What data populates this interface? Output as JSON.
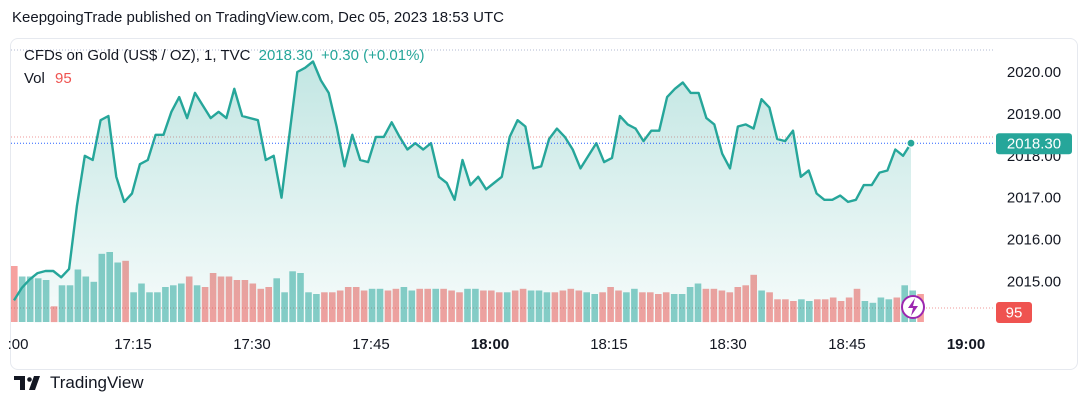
{
  "header": {
    "published": "KeepgoingTrade published on TradingView.com, Dec 05, 2023 18:53 UTC"
  },
  "legend": {
    "symbol": "CFDs on Gold (US$ / OZ), 1, TVC",
    "price": "2018.30",
    "change": "+0.30 (+0.01%)",
    "vol_label": "Vol",
    "vol_value": "95"
  },
  "footer": {
    "brand": "TradingView"
  },
  "colors": {
    "up": "#26a69a",
    "down": "#ef5350",
    "line": "#26a69a",
    "text": "#131722"
  },
  "chart_data": {
    "type": "area",
    "y_ticks": [
      "2015.00",
      "2016.00",
      "2017.00",
      "2018.00",
      "2019.00",
      "2020.00"
    ],
    "x_ticks": [
      ":00",
      "17:15",
      "17:30",
      "17:45",
      "18:00",
      "18:15",
      "18:30",
      "18:45",
      "19:00"
    ],
    "last_price_label": "2018.30",
    "last_volume_label": "95",
    "ylim": [
      2014.2,
      2020.6
    ],
    "price": [
      2014.55,
      2014.85,
      2015.05,
      2015.2,
      2015.25,
      2015.25,
      2015.1,
      2015.3,
      2016.8,
      2018.0,
      2017.9,
      2018.85,
      2018.95,
      2017.5,
      2016.9,
      2017.1,
      2017.8,
      2017.9,
      2018.5,
      2018.5,
      2019.05,
      2019.4,
      2018.9,
      2019.5,
      2019.2,
      2018.9,
      2019.05,
      2018.9,
      2019.6,
      2018.95,
      2018.9,
      2018.85,
      2017.9,
      2018.0,
      2017.0,
      2018.5,
      2020.0,
      2020.1,
      2020.25,
      2019.8,
      2019.5,
      2018.7,
      2017.75,
      2018.5,
      2017.9,
      2017.85,
      2018.45,
      2018.45,
      2018.8,
      2018.45,
      2018.15,
      2018.3,
      2018.15,
      2018.3,
      2017.5,
      2017.35,
      2016.95,
      2017.9,
      2017.3,
      2017.5,
      2017.2,
      2017.35,
      2017.5,
      2018.45,
      2018.85,
      2018.7,
      2017.7,
      2017.75,
      2018.4,
      2018.65,
      2018.45,
      2018.15,
      2017.7,
      2018.0,
      2018.3,
      2017.85,
      2017.95,
      2018.95,
      2018.75,
      2018.65,
      2018.35,
      2018.6,
      2018.6,
      2019.4,
      2019.6,
      2019.75,
      2019.5,
      2019.5,
      2018.9,
      2018.75,
      2018.05,
      2017.7,
      2018.7,
      2018.75,
      2018.65,
      2019.35,
      2019.15,
      2018.4,
      2018.35,
      2018.6,
      2017.5,
      2017.65,
      2017.1,
      2016.95,
      2016.95,
      2017.05,
      2016.9,
      2016.95,
      2017.3,
      2017.3,
      2017.6,
      2017.65,
      2018.15,
      2018.0,
      2018.3
    ],
    "volume": [
      32,
      26,
      26,
      25,
      24,
      9,
      21,
      21,
      30,
      26,
      23,
      39,
      40,
      34,
      35,
      17,
      22,
      17,
      17,
      20,
      21,
      22,
      26,
      21,
      20,
      28,
      26,
      26,
      24,
      24,
      22,
      19,
      20,
      25,
      17,
      29,
      28,
      17,
      16,
      17,
      17,
      18,
      20,
      20,
      18,
      19,
      19,
      18,
      19,
      20,
      18,
      19,
      19,
      19,
      19,
      18,
      17,
      19,
      19,
      18,
      18,
      17,
      17,
      18,
      19,
      18,
      18,
      17,
      17,
      18,
      19,
      18,
      17,
      16,
      17,
      20,
      18,
      17,
      19,
      17,
      17,
      16,
      17,
      16,
      16,
      20,
      22,
      19,
      19,
      18,
      17,
      20,
      21,
      27,
      18,
      17,
      13,
      13,
      12,
      13,
      12,
      13,
      13,
      14,
      12,
      14,
      19,
      12,
      11,
      14,
      13,
      14,
      21,
      18,
      16
    ],
    "volume_up": [
      false,
      true,
      true,
      true,
      true,
      false,
      true,
      true,
      true,
      true,
      true,
      true,
      true,
      true,
      false,
      true,
      true,
      true,
      true,
      true,
      true,
      true,
      false,
      true,
      false,
      false,
      false,
      false,
      false,
      false,
      false,
      false,
      false,
      true,
      true,
      true,
      true,
      true,
      true,
      false,
      false,
      false,
      false,
      false,
      false,
      true,
      true,
      false,
      false,
      true,
      true,
      false,
      false,
      true,
      false,
      false,
      false,
      true,
      true,
      false,
      false,
      false,
      true,
      false,
      false,
      true,
      true,
      true,
      false,
      false,
      false,
      false,
      true,
      true,
      false,
      false,
      false,
      true,
      true,
      false,
      false,
      false,
      false,
      true,
      true,
      true,
      true,
      false,
      false,
      false,
      false,
      false,
      false,
      false,
      true,
      false,
      false,
      false,
      false,
      true,
      true,
      false,
      false,
      false,
      false,
      false,
      false,
      true,
      true,
      true,
      true,
      false,
      true,
      true,
      false
    ]
  }
}
